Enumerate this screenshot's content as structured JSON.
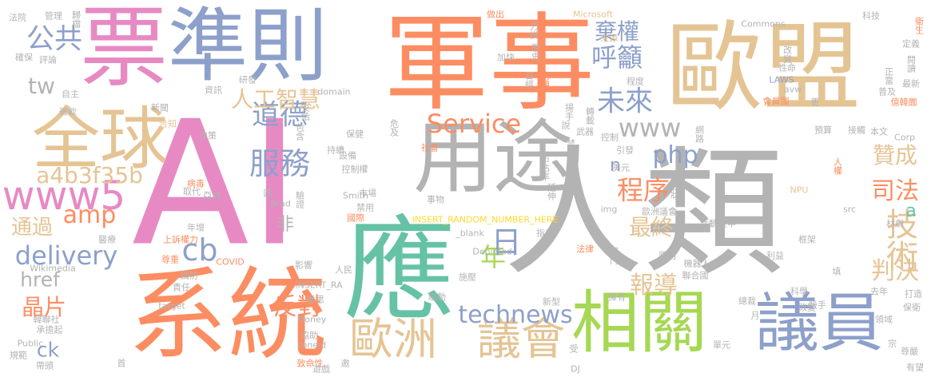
{
  "palette": {
    "pink": "#e78ac3",
    "orange": "#fc8d62",
    "tan": "#e5c494",
    "blue": "#8da0cb",
    "green": "#a6d854",
    "gray": "#b3b3b3",
    "teal": "#66c2a5",
    "yellow": "#ffd92f"
  },
  "words": [
    {
      "t": "AI",
      "c": "pink"
    },
    {
      "t": "軍事",
      "c": "orange"
    },
    {
      "t": "人類",
      "c": "gray"
    },
    {
      "t": "系統",
      "c": "orange"
    },
    {
      "t": "應",
      "c": "teal"
    },
    {
      "t": "歐盟",
      "c": "tan"
    },
    {
      "t": "票",
      "c": "pink"
    },
    {
      "t": "準則",
      "c": "blue"
    },
    {
      "t": "用途",
      "c": "gray"
    },
    {
      "t": "全球",
      "c": "tan"
    },
    {
      "t": "相關",
      "c": "green"
    },
    {
      "t": "議員",
      "c": "blue"
    },
    {
      "t": "歐洲",
      "c": "tan"
    },
    {
      "t": "議會",
      "c": "tan"
    },
    {
      "t": "www5",
      "c": "pink"
    },
    {
      "t": "technews",
      "c": "blue"
    },
    {
      "t": "Service",
      "c": "orange"
    },
    {
      "t": "服務",
      "c": "blue"
    },
    {
      "t": "道德",
      "c": "blue"
    },
    {
      "t": "人工智慧",
      "c": "tan"
    },
    {
      "t": "未來",
      "c": "blue"
    },
    {
      "t": "呼籲",
      "c": "blue"
    },
    {
      "t": "棄權",
      "c": "blue"
    },
    {
      "t": "公共",
      "c": "blue"
    },
    {
      "t": "www",
      "c": "gray"
    },
    {
      "t": "php",
      "c": "blue"
    },
    {
      "t": "程序",
      "c": "orange"
    },
    {
      "t": "最終",
      "c": "tan"
    },
    {
      "t": "報導",
      "c": "tan"
    },
    {
      "t": "年",
      "c": "green"
    },
    {
      "t": "日",
      "c": "blue"
    },
    {
      "t": "技術",
      "c": "tan"
    },
    {
      "t": "判決",
      "c": "tan"
    },
    {
      "t": "司法",
      "c": "orange"
    },
    {
      "t": "贊成",
      "c": "tan"
    },
    {
      "t": "delivery",
      "c": "blue"
    },
    {
      "t": "amp",
      "c": "orange"
    },
    {
      "t": "cb",
      "c": "blue"
    },
    {
      "t": "a4b3f35b",
      "c": "tan"
    },
    {
      "t": "反對",
      "c": "orange"
    },
    {
      "t": "晶片",
      "c": "orange"
    },
    {
      "t": "通過",
      "c": "tan"
    },
    {
      "t": "href",
      "c": "gray"
    },
    {
      "t": "ck",
      "c": "blue"
    },
    {
      "t": "tw",
      "c": "gray"
    },
    {
      "t": "非",
      "c": "gray"
    },
    {
      "t": "n",
      "c": "blue"
    },
    {
      "t": "a",
      "c": "teal"
    },
    {
      "t": "法院",
      "c": "gray"
    },
    {
      "t": "管理",
      "c": "gray"
    },
    {
      "t": "歸檔",
      "c": "gray"
    },
    {
      "t": "做出",
      "c": "orange"
    },
    {
      "t": "Microsoft",
      "c": "tan"
    },
    {
      "t": "科技",
      "c": "gray"
    },
    {
      "t": "衛生",
      "c": "orange"
    },
    {
      "t": "Commons",
      "c": "gray"
    },
    {
      "t": "來源",
      "c": "tan"
    },
    {
      "t": "力拼",
      "c": "gray"
    },
    {
      "t": "定義",
      "c": "gray"
    },
    {
      "t": "確保",
      "c": "gray"
    },
    {
      "t": "評論",
      "c": "gray"
    },
    {
      "t": "歷史",
      "c": "gray"
    },
    {
      "t": "加快",
      "c": "gray"
    },
    {
      "t": "改變",
      "c": "gray"
    },
    {
      "t": "性命",
      "c": "gray"
    },
    {
      "t": "閱讀",
      "c": "gray"
    },
    {
      "t": "最新",
      "c": "gray"
    },
    {
      "t": "日經",
      "c": "gray"
    },
    {
      "t": "南韓",
      "c": "orange"
    },
    {
      "t": "LAWS",
      "c": "blue"
    },
    {
      "t": "程度",
      "c": "gray"
    },
    {
      "t": "正當",
      "c": "gray"
    },
    {
      "t": "普及",
      "c": "gray"
    },
    {
      "t": "自主",
      "c": "gray"
    },
    {
      "t": "研發",
      "c": "gray"
    },
    {
      "t": "資訊",
      "c": "gray"
    },
    {
      "t": "domain",
      "c": "gray"
    },
    {
      "t": "avw",
      "c": "gray"
    },
    {
      "t": "會員國",
      "c": "orange"
    },
    {
      "t": "億韓圜",
      "c": "orange"
    },
    {
      "t": "微軟",
      "c": "gray"
    },
    {
      "t": "新聞",
      "c": "gray"
    },
    {
      "t": "交給",
      "c": "gray"
    },
    {
      "t": "揚手",
      "c": "gray"
    },
    {
      "t": "轉載",
      "c": "gray"
    },
    {
      "t": "更",
      "c": "gray"
    },
    {
      "t": "告知",
      "c": "tan"
    },
    {
      "t": "決策",
      "c": "gray"
    },
    {
      "t": "包含",
      "c": "gray"
    },
    {
      "t": "危及",
      "c": "gray"
    },
    {
      "t": "說",
      "c": "gray"
    },
    {
      "t": "武器",
      "c": "gray"
    },
    {
      "t": "控制",
      "c": "gray"
    },
    {
      "t": "預算",
      "c": "gray"
    },
    {
      "t": "接觸",
      "c": "gray"
    },
    {
      "t": "本文",
      "c": "gray"
    },
    {
      "t": "保健",
      "c": "gray"
    },
    {
      "t": "社會",
      "c": "orange"
    },
    {
      "t": "網路",
      "c": "gray"
    },
    {
      "t": "Corp",
      "c": "gray"
    },
    {
      "t": "持續",
      "c": "gray"
    },
    {
      "t": "設備",
      "c": "gray"
    },
    {
      "t": "禁止",
      "c": "gray"
    },
    {
      "t": "引發",
      "c": "gray"
    },
    {
      "t": "控制權",
      "c": "gray"
    },
    {
      "t": "美元",
      "c": "gray"
    },
    {
      "t": "市佔率",
      "c": "gray"
    },
    {
      "t": "冠狀",
      "c": "gray"
    },
    {
      "t": "人權",
      "c": "orange"
    },
    {
      "t": "病毒",
      "c": "orange"
    },
    {
      "t": "取代",
      "c": "gray"
    },
    {
      "t": "亞洲",
      "c": "gray"
    },
    {
      "t": "市場",
      "c": "gray"
    },
    {
      "t": "延伸",
      "c": "gray"
    },
    {
      "t": "驗證",
      "c": "gray"
    },
    {
      "t": "Smith",
      "c": "gray"
    },
    {
      "t": "NPU",
      "c": "tan"
    },
    {
      "t": "圖",
      "c": "gray"
    },
    {
      "t": "Brad",
      "c": "gray"
    },
    {
      "t": "事物",
      "c": "gray"
    },
    {
      "t": "歐洲議會",
      "c": "gray"
    },
    {
      "t": "禁用",
      "c": "gray"
    },
    {
      "t": "img",
      "c": "gray"
    },
    {
      "t": "src",
      "c": "gray"
    },
    {
      "t": "INSERT_RANDOM_NUMBER_HERE",
      "c": "yellow"
    },
    {
      "t": "國際",
      "c": "orange"
    },
    {
      "t": "活動",
      "c": "gray"
    },
    {
      "t": "重申",
      "c": "gray"
    },
    {
      "t": "材劇",
      "c": "gray"
    },
    {
      "t": "年增",
      "c": "gray"
    },
    {
      "t": "_blank",
      "c": "gray"
    },
    {
      "t": "上訴權力",
      "c": "orange"
    },
    {
      "t": "指出",
      "c": "gray"
    },
    {
      "t": "醫療",
      "c": "gray"
    },
    {
      "t": "框架",
      "c": "gray"
    },
    {
      "t": "尊重",
      "c": "orange"
    },
    {
      "t": "Depicted",
      "c": "gray"
    },
    {
      "t": "法律",
      "c": "orange"
    },
    {
      "t": "部門",
      "c": "gray"
    },
    {
      "t": "原則",
      "c": "gray"
    },
    {
      "t": "利益",
      "c": "gray"
    },
    {
      "t": "COVID",
      "c": "orange"
    },
    {
      "t": "約",
      "c": "gray"
    },
    {
      "t": "機器人",
      "c": "gray"
    },
    {
      "t": "Wikimedia",
      "c": "gray"
    },
    {
      "t": "影響",
      "c": "gray"
    },
    {
      "t": "人民",
      "c": "gray"
    },
    {
      "t": "國防",
      "c": "gray"
    },
    {
      "t": "施壓",
      "c": "gray"
    },
    {
      "t": "聯合國",
      "c": "gray"
    },
    {
      "t": "責任",
      "c": "gray"
    },
    {
      "t": "INSERT_RA",
      "c": "gray"
    },
    {
      "t": "科學",
      "c": "gray"
    },
    {
      "t": "去年",
      "c": "gray"
    },
    {
      "t": "打造",
      "c": "gray"
    },
    {
      "t": "保衛",
      "c": "gray"
    },
    {
      "t": "改變",
      "c": "gray"
    },
    {
      "t": "驅動",
      "c": "gray"
    },
    {
      "t": "新型",
      "c": "gray"
    },
    {
      "t": "擁有",
      "c": "gray"
    },
    {
      "t": "總裁",
      "c": "gray"
    },
    {
      "t": "殺手",
      "c": "gray"
    },
    {
      "t": "領域",
      "c": "gray"
    },
    {
      "t": "target",
      "c": "gray"
    },
    {
      "t": "意思",
      "c": "gray"
    },
    {
      "t": "韓聯社",
      "c": "gray"
    },
    {
      "t": "承擔起",
      "c": "gray"
    },
    {
      "t": "Money",
      "c": "gray"
    },
    {
      "t": "月",
      "c": "gray"
    },
    {
      "t": "Public",
      "c": "gray"
    },
    {
      "t": "協助",
      "c": "gray"
    },
    {
      "t": "zoneid",
      "c": "gray"
    },
    {
      "t": "單元",
      "c": "gray"
    },
    {
      "t": "宗",
      "c": "gray"
    },
    {
      "t": "規範",
      "c": "gray"
    },
    {
      "t": "致命性",
      "c": "orange"
    },
    {
      "t": "受",
      "c": "gray"
    },
    {
      "t": "尊嚴",
      "c": "gray"
    },
    {
      "t": "帶頭",
      "c": "gray"
    },
    {
      "t": "首",
      "c": "gray"
    },
    {
      "t": "邀",
      "c": "gray"
    },
    {
      "t": "DJ",
      "c": "gray"
    },
    {
      "t": "有望",
      "c": "gray"
    },
    {
      "t": "遊戲",
      "c": "gray"
    },
    {
      "t": "填",
      "c": "gray"
    }
  ]
}
